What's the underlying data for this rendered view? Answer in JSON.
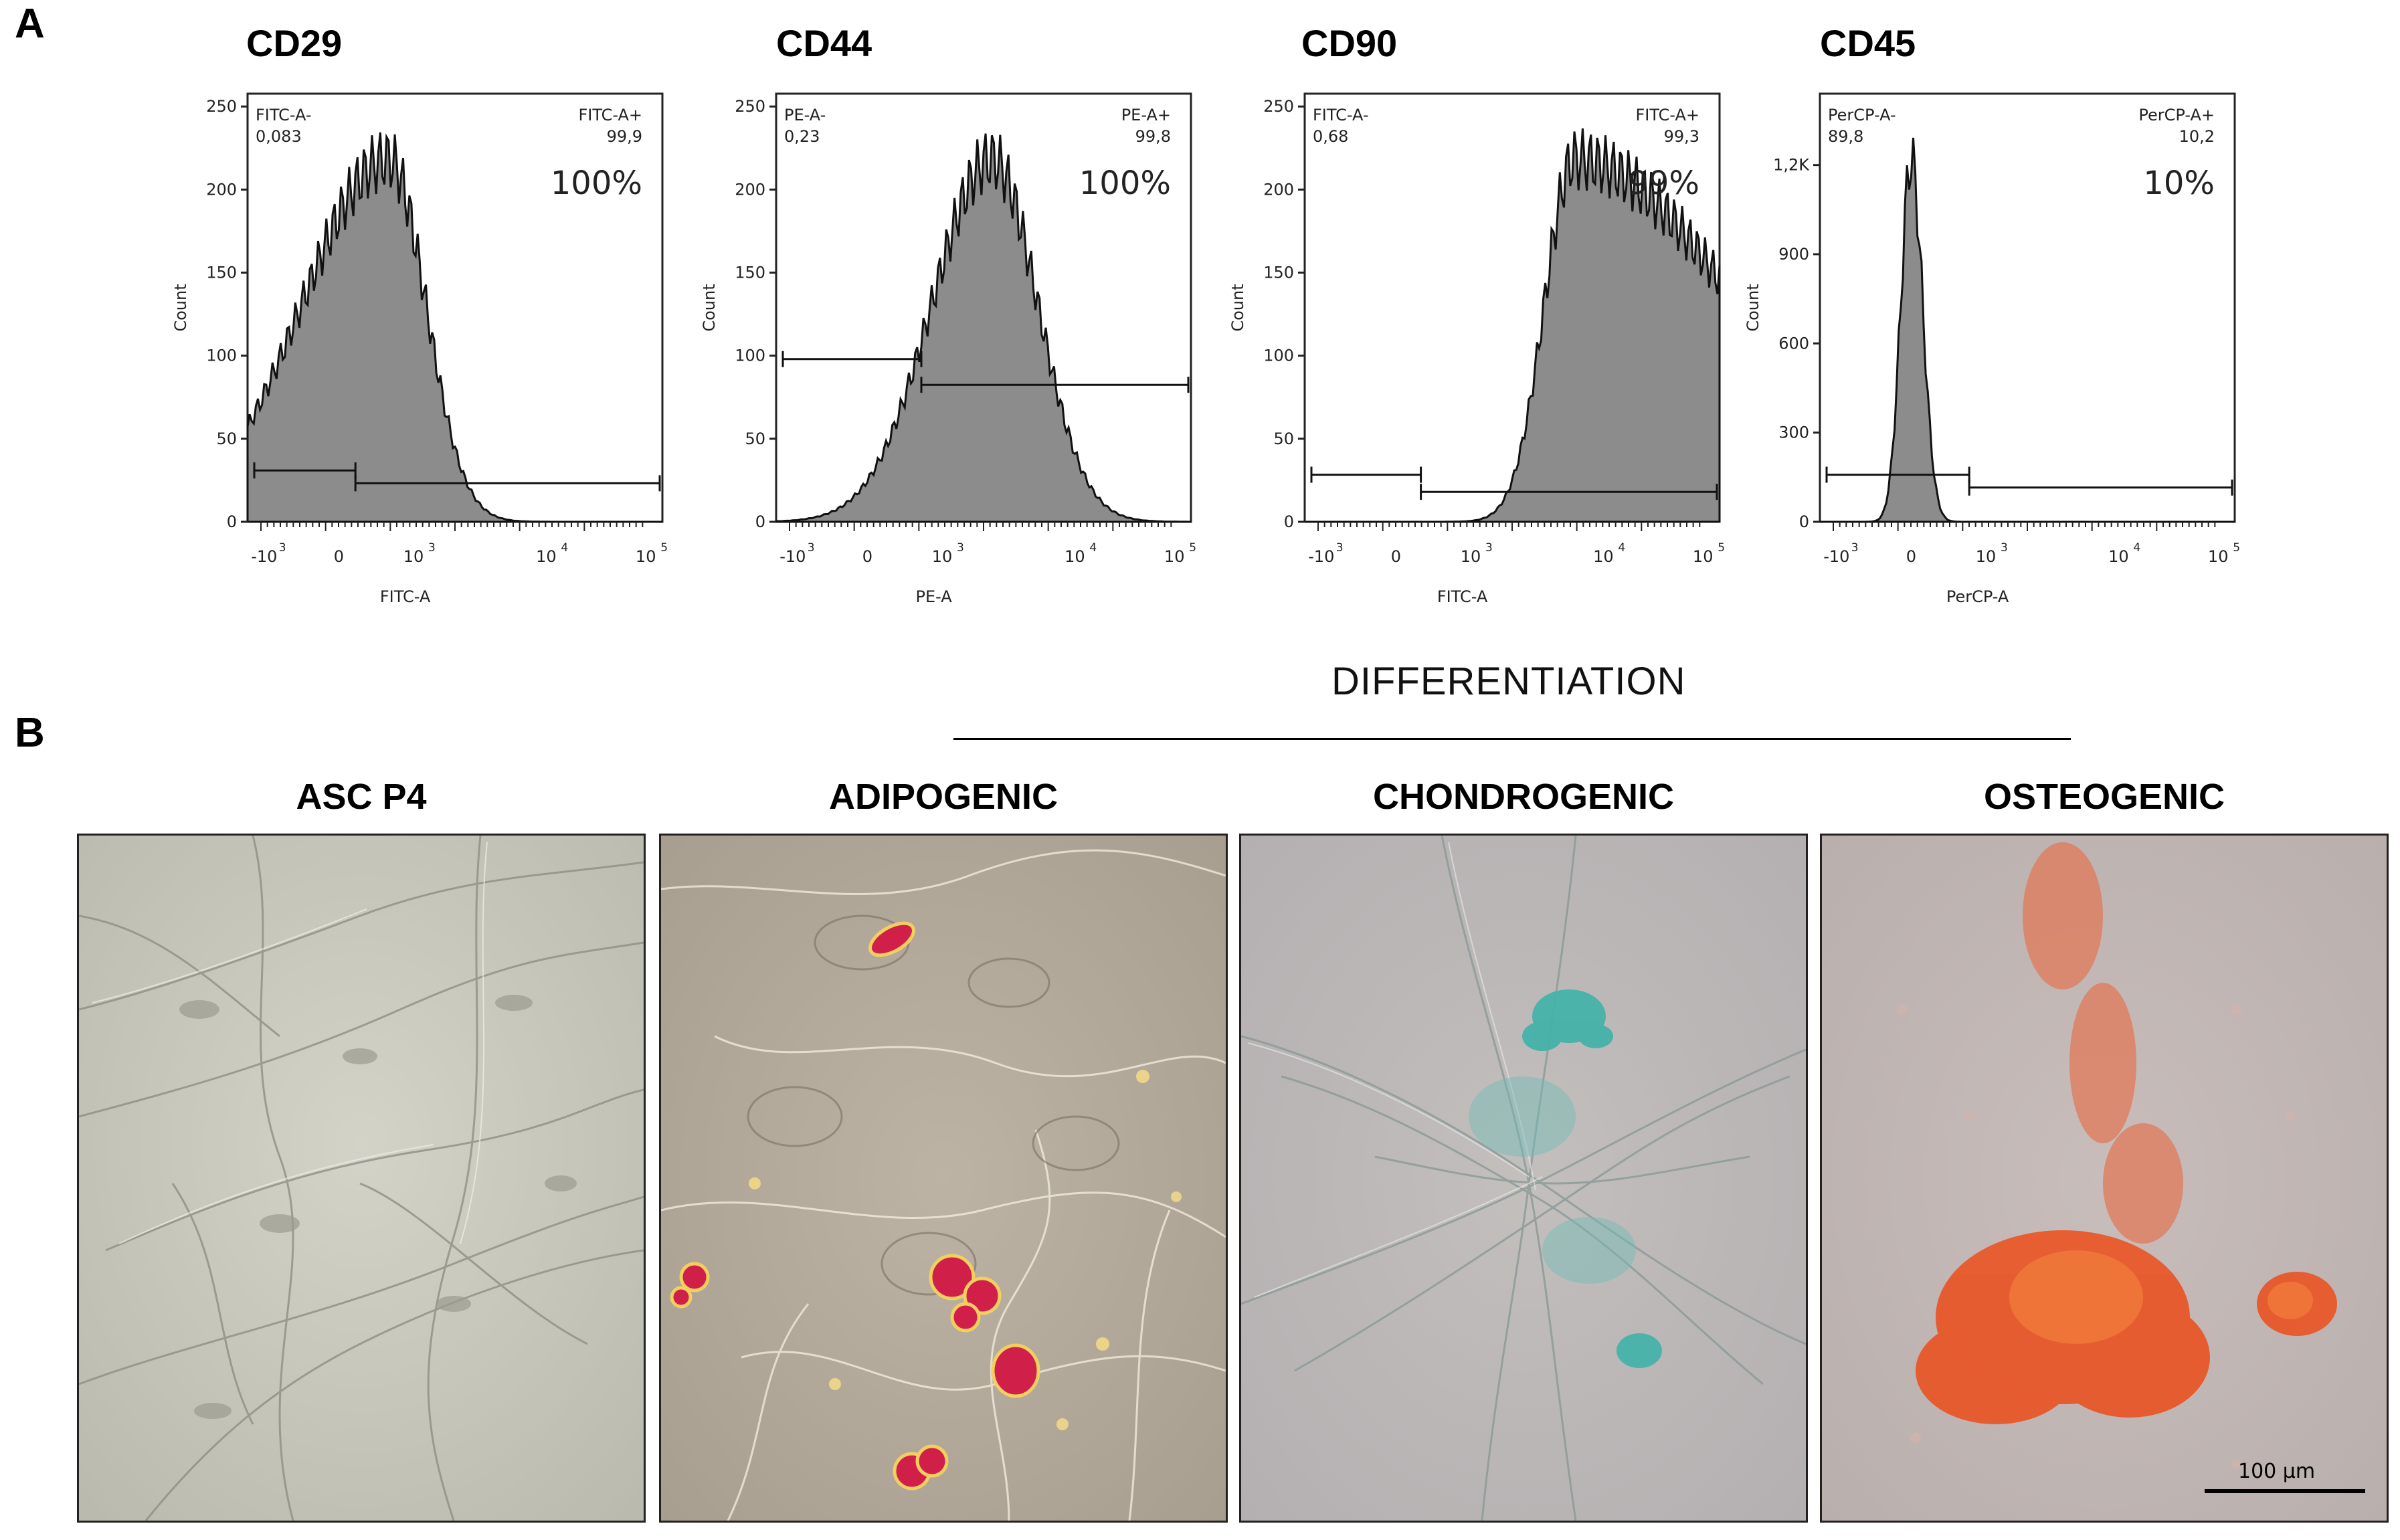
{
  "panel_a": {
    "letter": "A",
    "histograms": [
      {
        "id": "cd29",
        "title": "CD29",
        "x_axis_label": "FITC-A",
        "y_axis_label": "Count",
        "gate_neg_label": "FITC-A-",
        "gate_neg_value": "0,083",
        "gate_pos_label": "FITC-A+",
        "gate_pos_value": "99,9",
        "percent": "100%",
        "y_ticks": [
          "0",
          "50",
          "100",
          "150",
          "200",
          "250"
        ],
        "x_ticks": [
          "-10",
          "0",
          "10",
          "10",
          "10"
        ],
        "x_tick_exps": [
          "3",
          "",
          "3",
          "4",
          "5"
        ]
      },
      {
        "id": "cd44",
        "title": "CD44",
        "x_axis_label": "PE-A",
        "y_axis_label": "Count",
        "gate_neg_label": "PE-A-",
        "gate_neg_value": "0,23",
        "gate_pos_label": "PE-A+",
        "gate_pos_value": "99,8",
        "percent": "100%",
        "y_ticks": [
          "0",
          "50",
          "100",
          "150",
          "200",
          "250"
        ],
        "x_ticks": [
          "-10",
          "0",
          "10",
          "10",
          "10"
        ],
        "x_tick_exps": [
          "3",
          "",
          "3",
          "4",
          "5"
        ]
      },
      {
        "id": "cd90",
        "title": "CD90",
        "x_axis_label": "FITC-A",
        "y_axis_label": "Count",
        "gate_neg_label": "FITC-A-",
        "gate_neg_value": "0,68",
        "gate_pos_label": "FITC-A+",
        "gate_pos_value": "99,3",
        "percent": "99%",
        "y_ticks": [
          "0",
          "50",
          "100",
          "150",
          "200",
          "250"
        ],
        "x_ticks": [
          "-10",
          "0",
          "10",
          "10",
          "10"
        ],
        "x_tick_exps": [
          "3",
          "",
          "3",
          "4",
          "5"
        ]
      },
      {
        "id": "cd45",
        "title": "CD45",
        "x_axis_label": "PerCP-A",
        "y_axis_label": "Count",
        "gate_neg_label": "PerCP-A-",
        "gate_neg_value": "89,8",
        "gate_pos_label": "PerCP-A+",
        "gate_pos_value": "10,2",
        "percent": "10%",
        "y_ticks": [
          "0",
          "300",
          "600",
          "900",
          "1,2K"
        ],
        "x_ticks": [
          "-10",
          "0",
          "10",
          "10",
          "10"
        ],
        "x_tick_exps": [
          "3",
          "",
          "3",
          "4",
          "5"
        ]
      }
    ]
  },
  "panel_b": {
    "letter": "B",
    "differentiation_title": "DIFFERENTIATION",
    "images": [
      {
        "id": "asc",
        "title": "ASC P4"
      },
      {
        "id": "adipo",
        "title": "ADIPOGENIC"
      },
      {
        "id": "chondro",
        "title": "CHONDROGENIC"
      },
      {
        "id": "osteo",
        "title": "OSTEOGENIC"
      }
    ],
    "scale_bar_label": "100 µm"
  },
  "colors": {
    "histogram_fill": "#8c8c8c",
    "phase_bg": "#c9c8bd",
    "oil_red": "#d0204a",
    "alcian_blue": "#3fb2a8",
    "alizarin_red": "#e8582a"
  }
}
